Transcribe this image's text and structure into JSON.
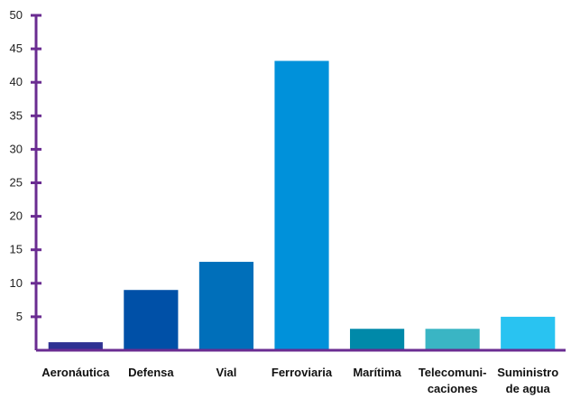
{
  "chart_data": {
    "type": "bar",
    "categories": [
      [
        "Aeronáutica"
      ],
      [
        "Defensa"
      ],
      [
        "Vial"
      ],
      [
        "Ferroviaria"
      ],
      [
        "Marítima"
      ],
      [
        "Telecomuni-",
        "caciones"
      ],
      [
        "Suministro",
        "de agua"
      ]
    ],
    "values": [
      1.2,
      9,
      13.2,
      43.2,
      3.2,
      3.2,
      5
    ],
    "colors": [
      "#2e3192",
      "#0050a7",
      "#006fba",
      "#0091da",
      "#0089a9",
      "#3ab5c4",
      "#29c3f1"
    ],
    "axis_color": "#6a2c91",
    "ylim": [
      0,
      50
    ],
    "yticks": [
      5,
      10,
      15,
      20,
      25,
      30,
      35,
      40,
      45,
      50
    ],
    "title": "",
    "xlabel": "",
    "ylabel": "",
    "grid": false,
    "legend": "none"
  }
}
